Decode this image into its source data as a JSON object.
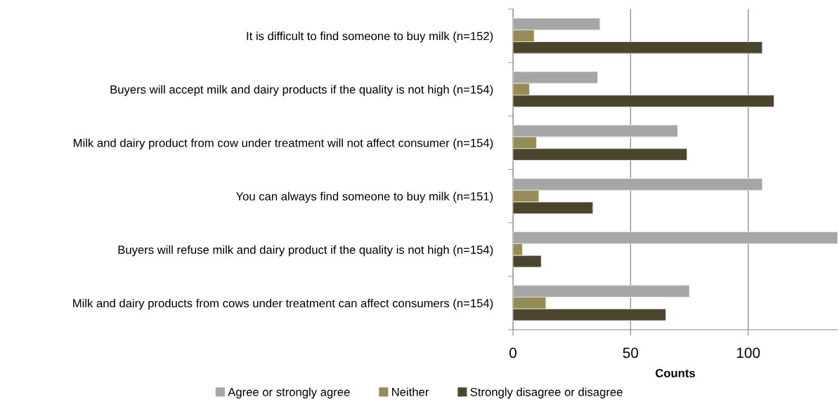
{
  "chart_data": {
    "type": "bar",
    "orientation": "horizontal",
    "xlabel": "Counts",
    "categories": [
      "It is difficult to find someone to buy milk (n=152)",
      "Buyers will accept milk and dairy products if the quality is not high (n=154)",
      "Milk and dairy product from cow under treatment will not affect consumer (n=154)",
      "You can always find someone to buy milk (n=151)",
      "Buyers will refuse milk and dairy product if the quality is not high (n=154)",
      "Milk and dairy products from cows under treatment can affect consumers (n=154)"
    ],
    "series": [
      {
        "name": "Agree or strongly agree",
        "color": "#a6a6a6",
        "values": [
          37,
          36,
          70,
          106,
          138,
          75
        ]
      },
      {
        "name": "Neither",
        "color": "#968c55",
        "values": [
          9,
          7,
          10,
          11,
          4,
          14
        ]
      },
      {
        "name": "Strongly disagree or disagree",
        "color": "#4b452d",
        "values": [
          106,
          111,
          74,
          34,
          12,
          65
        ]
      }
    ],
    "xlim": [
      0,
      138
    ],
    "xticks": [
      0,
      50,
      100
    ],
    "grid": "x",
    "legend": "bottom"
  }
}
